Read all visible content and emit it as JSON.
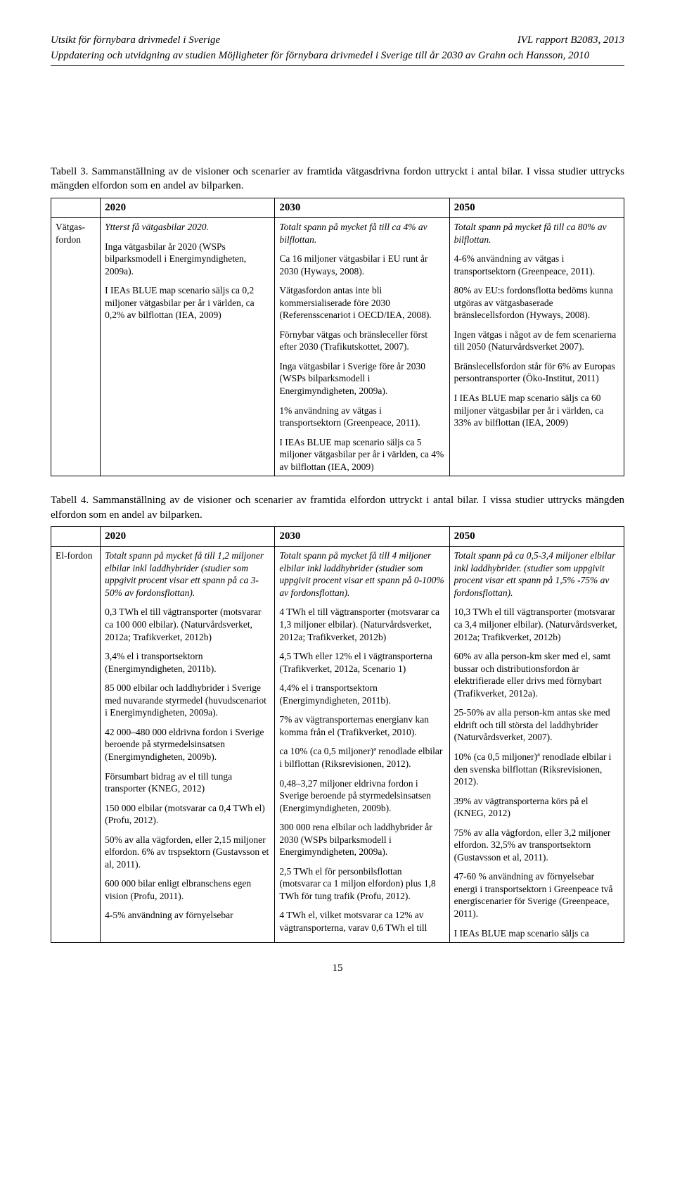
{
  "header": {
    "left": "Utsikt för förnybara drivmedel i Sverige",
    "right": "IVL rapport B2083, 2013",
    "sub": "Uppdatering och utvidgning av studien Möjligheter för förnybara drivmedel i Sverige till år 2030 av Grahn och Hansson, 2010"
  },
  "table3": {
    "caption": "Tabell 3. Sammanställning av de visioner och scenarier av framtida vätgasdrivna fordon uttryckt i antal bilar. I vissa studier uttrycks mängden elfordon som en andel av bilparken.",
    "col_years": [
      "2020",
      "2030",
      "2050"
    ],
    "row_label": "Vätgas-fordon",
    "c2020": {
      "p1": "Ytterst få vätgasbilar 2020.",
      "p2": "Inga vätgasbilar år 2020 (WSPs bilparksmodell i Energimyndigheten, 2009a).",
      "p3": "I IEAs BLUE map scenario säljs ca 0,2 miljoner vätgasbilar per år i världen, ca 0,2% av bilflottan (IEA, 2009)"
    },
    "c2030": {
      "p1": "Totalt spann på mycket få till ca 4% av bilflottan.",
      "p2": "Ca 16 miljoner vätgasbilar i EU runt år 2030 (Hyways, 2008).",
      "p3": "Vätgasfordon antas inte bli kommersialiserade före 2030 (Referensscenariot i OECD/IEA, 2008).",
      "p4": "Förnybar vätgas och bränsleceller först efter 2030 (Trafikutskottet, 2007).",
      "p5": "Inga vätgasbilar i Sverige före år 2030 (WSPs bilparksmodell i Energimyndigheten, 2009a).",
      "p6": "1% användning av vätgas i transportsektorn (Greenpeace, 2011).",
      "p7": "I IEAs BLUE map scenario säljs ca 5 miljoner vätgasbilar per år i världen, ca 4% av bilflottan (IEA, 2009)"
    },
    "c2050": {
      "p1": "Totalt spann på mycket få till ca 80% av bilflottan.",
      "p2": "4-6% användning av vätgas i transportsektorn (Greenpeace, 2011).",
      "p3": "80% av EU:s fordonsflotta bedöms kunna utgöras av vätgasbaserade bränslecellsfordon (Hyways, 2008).",
      "p4": "Ingen vätgas i något av de fem scenarierna till 2050 (Naturvårdsverket 2007).",
      "p5": "Bränslecellsfordon står för 6% av Europas persontransporter (Öko-Institut, 2011)",
      "p6": "I IEAs BLUE map scenario säljs ca 60 miljoner vätgasbilar per år i världen, ca 33% av bilflottan (IEA, 2009)"
    }
  },
  "table4": {
    "caption": "Tabell 4. Sammanställning av de visioner och scenarier av framtida elfordon uttryckt i antal bilar. I vissa studier uttrycks mängden elfordon som en andel av bilparken.",
    "col_years": [
      "2020",
      "2030",
      "2050"
    ],
    "row_label": "El-fordon",
    "c2020": {
      "p1": "Totalt spann på mycket få till 1,2 miljoner elbilar inkl laddhybrider (studier som uppgivit procent visar ett spann på ca 3-50% av fordonsflottan).",
      "p2": "0,3 TWh el till vägtransporter (motsvarar ca 100 000 elbilar). (Naturvårdsverket, 2012a; Trafikverket, 2012b)",
      "p3": "3,4% el i transportsektorn (Energimyndigheten, 2011b).",
      "p4": "85 000 elbilar och laddhybrider i Sverige med nuvarande styrmedel (huvudscenariot i Energimyndigheten, 2009a).",
      "p5": "42 000–480 000 eldrivna fordon i Sverige beroende på styrmedelsinsatsen (Energimyndigheten, 2009b).",
      "p6": "Försumbart bidrag av el till tunga transporter (KNEG, 2012)",
      "p7": "150 000 elbilar (motsvarar ca 0,4 TWh el) (Profu, 2012).",
      "p8": "50% av alla vägforden, eller 2,15 miljoner elfordon. 6% av trspsektorn (Gustavsson et al, 2011).",
      "p9": "600 000 bilar enligt elbranschens egen vision (Profu, 2011).",
      "p10": "4-5% användning av förnyelsebar"
    },
    "c2030": {
      "p1": "Totalt spann på mycket få till 4 miljoner elbilar inkl laddhybrider (studier som uppgivit procent visar ett spann på 0-100% av fordonsflottan).",
      "p2": "4 TWh el till vägtransporter (motsvarar ca 1,3 miljoner elbilar). (Naturvårdsverket, 2012a; Trafikverket, 2012b)",
      "p3": "4,5 TWh eller 12% el i vägtransporterna (Trafikverket, 2012a, Scenario 1)",
      "p4": "4,4% el i transportsektorn (Energimyndigheten, 2011b).",
      "p5": "7% av vägtransporternas energianv kan komma från el (Trafikverket, 2010).",
      "p6": "ca 10% (ca 0,5 miljoner)ª renodlade elbilar i bilflottan (Riksrevisionen, 2012).",
      "p7": "0,48–3,27 miljoner eldrivna fordon i Sverige beroende på styrmedelsinsatsen (Energimyndigheten, 2009b).",
      "p8": "300 000 rena elbilar och laddhybrider år 2030 (WSPs bilparksmodell i Energimyndigheten, 2009a).",
      "p9": "2,5 TWh el för personbilsflottan (motsvarar ca 1 miljon elfordon) plus 1,8 TWh för tung trafik (Profu, 2012).",
      "p10": "4 TWh el, vilket motsvarar ca 12% av vägtransporterna, varav 0,6 TWh el till"
    },
    "c2050": {
      "p1": "Totalt spann på ca 0,5-3,4 miljoner elbilar inkl laddhybrider. (studier som uppgivit procent visar ett spann på 1,5% -75% av fordonsflottan).",
      "p2": "10,3 TWh el till vägtransporter (motsvarar ca 3,4 miljoner elbilar). (Naturvårdsverket, 2012a; Trafikverket, 2012b)",
      "p3": "60% av alla person-km sker med el, samt bussar och distributionsfordon är elektrifierade eller drivs med förnybart (Trafikverket, 2012a).",
      "p4": "25-50% av alla person-km antas ske med eldrift och till största del laddhybrider (Naturvårdsverket, 2007).",
      "p5": "10% (ca 0,5 miljoner)ª renodlade elbilar i den svenska bilflottan (Riksrevisionen, 2012).",
      "p6": "39% av vägtransporterna körs på el (KNEG, 2012)",
      "p7": "75% av alla vägfordon, eller 3,2 miljoner elfordon. 32,5% av transportsektorn (Gustavsson et al, 2011).",
      "p8": "47-60 % användning av förnyelsebar energi i transportsektorn i Greenpeace två energiscenarier för Sverige (Greenpeace, 2011).",
      "p9": "I IEAs BLUE map scenario säljs ca"
    }
  },
  "page_number": "15"
}
